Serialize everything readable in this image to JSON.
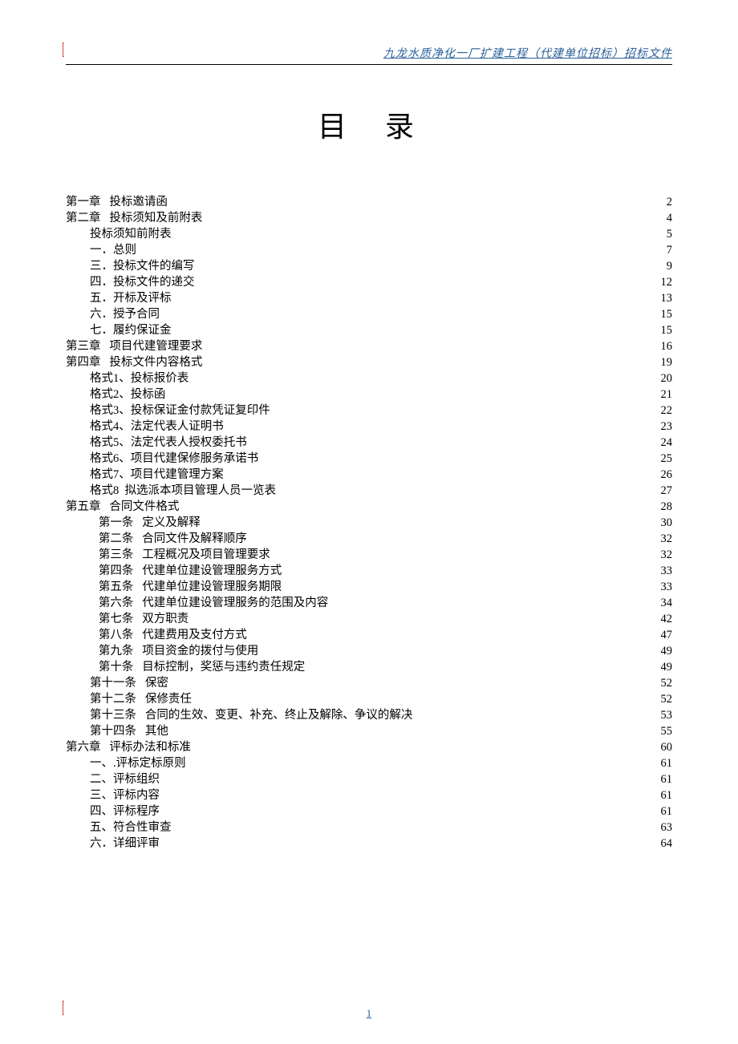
{
  "header": "九龙水质净化一厂扩建工程（代建单位招标）招标文件",
  "title": "目录",
  "footer_page": "1",
  "colors": {
    "header_text": "#2a6099",
    "header_rule": "#000000",
    "body_text": "#000000",
    "background": "#ffffff",
    "cursor_mark": "#d04a4a"
  },
  "typography": {
    "title_fontsize_pt": 28,
    "body_fontsize_pt": 11,
    "header_fontsize_pt": 10.5,
    "font_family": "SimSun"
  },
  "toc": [
    {
      "level": 0,
      "label": "第一章   投标邀请函",
      "page": "2"
    },
    {
      "level": 0,
      "label": "第二章   投标须知及前附表",
      "page": "4"
    },
    {
      "level": 1,
      "label": "投标须知前附表",
      "page": "5"
    },
    {
      "level": 1,
      "label": "一．总则",
      "page": "7"
    },
    {
      "level": 1,
      "label": "三．投标文件的编写",
      "page": "9"
    },
    {
      "level": 1,
      "label": "四．投标文件的递交",
      "page": "12"
    },
    {
      "level": 1,
      "label": "五．开标及评标",
      "page": "13"
    },
    {
      "level": 1,
      "label": "六．授予合同",
      "page": "15"
    },
    {
      "level": 1,
      "label": "七．履约保证金",
      "page": "15"
    },
    {
      "level": 0,
      "label": "第三章   项目代建管理要求",
      "page": "16"
    },
    {
      "level": 0,
      "label": "第四章   投标文件内容格式",
      "page": "19"
    },
    {
      "level": 1,
      "label": "格式1、投标报价表",
      "page": "20"
    },
    {
      "level": 1,
      "label": "格式2、投标函",
      "page": "21"
    },
    {
      "level": 1,
      "label": "格式3、投标保证金付款凭证复印件",
      "page": "22"
    },
    {
      "level": 1,
      "label": "格式4、法定代表人证明书",
      "page": "23"
    },
    {
      "level": 1,
      "label": "格式5、法定代表人授权委托书",
      "page": "24"
    },
    {
      "level": 1,
      "label": "格式6、项目代建保修服务承诺书",
      "page": "25"
    },
    {
      "level": 1,
      "label": "格式7、项目代建管理方案",
      "page": "26"
    },
    {
      "level": 1,
      "label": "格式8  拟选派本项目管理人员一览表",
      "page": "27"
    },
    {
      "level": 0,
      "label": "第五章   合同文件格式",
      "page": "28"
    },
    {
      "level": 2,
      "label": "第一条   定义及解释",
      "page": "30"
    },
    {
      "level": 2,
      "label": "第二条   合同文件及解释顺序",
      "page": "32"
    },
    {
      "level": 2,
      "label": "第三条   工程概况及项目管理要求",
      "page": "32"
    },
    {
      "level": 2,
      "label": "第四条   代建单位建设管理服务方式",
      "page": "33"
    },
    {
      "level": 2,
      "label": "第五条   代建单位建设管理服务期限",
      "page": "33"
    },
    {
      "level": 2,
      "label": "第六条   代建单位建设管理服务的范围及内容",
      "page": "34"
    },
    {
      "level": 2,
      "label": "第七条   双方职责",
      "page": "42"
    },
    {
      "level": 2,
      "label": "第八条   代建费用及支付方式",
      "page": "47"
    },
    {
      "level": 2,
      "label": "第九条   项目资金的拨付与使用",
      "page": "49"
    },
    {
      "level": 2,
      "label": "第十条   目标控制，奖惩与违约责任规定",
      "page": "49"
    },
    {
      "level": 1,
      "label": "第十一条   保密",
      "page": "52"
    },
    {
      "level": 1,
      "label": "第十二条   保修责任",
      "page": "52"
    },
    {
      "level": 1,
      "label": "第十三条   合同的生效、变更、补充、终止及解除、争议的解决",
      "page": "53"
    },
    {
      "level": 1,
      "label": "第十四条   其他",
      "page": "55"
    },
    {
      "level": 0,
      "label": "第六章   评标办法和标准",
      "page": "60"
    },
    {
      "level": 1,
      "label": "一、.评标定标原则",
      "page": "61"
    },
    {
      "level": 1,
      "label": "二、评标组织",
      "page": "61"
    },
    {
      "level": 1,
      "label": "三、评标内容",
      "page": "61"
    },
    {
      "level": 1,
      "label": "四、评标程序",
      "page": "61"
    },
    {
      "level": 1,
      "label": "五、符合性审查",
      "page": "63"
    },
    {
      "level": 1,
      "label": "六．详细评审",
      "page": "64"
    }
  ]
}
